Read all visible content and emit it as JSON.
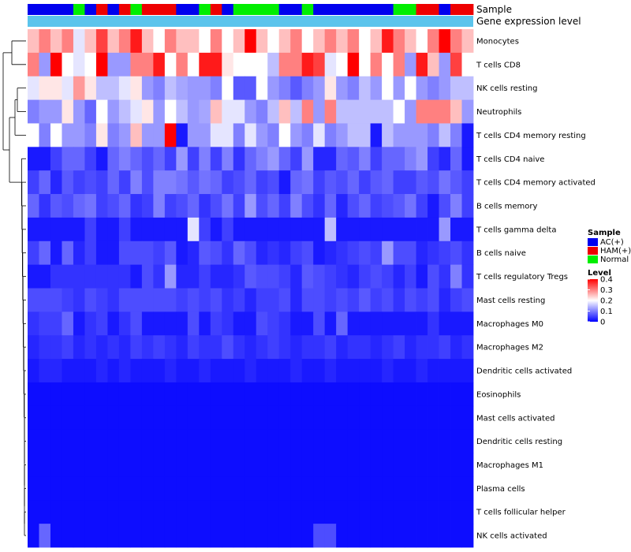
{
  "chart_data": {
    "type": "heatmap",
    "annotation_labels": {
      "sample": "Sample",
      "expression": "Gene expression level"
    },
    "rows": [
      "Monocytes",
      "T cells CD8",
      "NK cells resting",
      "Neutrophils",
      "T cells CD4 memory resting",
      "T cells CD4 naive",
      "T cells CD4 memory activated",
      "B cells memory",
      "T cells gamma delta",
      "B cells naive",
      "T cells regulatory  Tregs",
      "Mast cells resting",
      "Macrophages M0",
      "Macrophages M2",
      "Dendritic cells activated",
      "Eosinophils",
      "Mast cells activated",
      "Dendritic cells resting",
      "Macrophages M1",
      "Plasma cells",
      "T cells follicular helper",
      "NK cells activated"
    ],
    "sample_groups": [
      "AC",
      "AC",
      "AC",
      "AC",
      "Normal",
      "AC",
      "HAM",
      "AC",
      "HAM",
      "Normal",
      "HAM",
      "HAM",
      "HAM",
      "AC",
      "AC",
      "Normal",
      "HAM",
      "AC",
      "Normal",
      "Normal",
      "Normal",
      "Normal",
      "AC",
      "AC",
      "Normal",
      "AC",
      "AC",
      "AC",
      "AC",
      "AC",
      "AC",
      "AC",
      "Normal",
      "Normal",
      "HAM",
      "HAM",
      "AC",
      "HAM",
      "HAM"
    ],
    "values": [
      [
        0.25,
        0.3,
        0.25,
        0.3,
        0.18,
        0.25,
        0.35,
        0.25,
        0.3,
        0.38,
        0.25,
        0.2,
        0.3,
        0.25,
        0.25,
        0.2,
        0.3,
        0.2,
        0.25,
        0.4,
        0.25,
        0.2,
        0.25,
        0.3,
        0.2,
        0.25,
        0.3,
        0.25,
        0.3,
        0.2,
        0.25,
        0.38,
        0.3,
        0.25,
        0.2,
        0.3,
        0.4,
        0.3,
        0.25
      ],
      [
        0.3,
        0.12,
        0.4,
        0.2,
        0.18,
        0.2,
        0.4,
        0.12,
        0.12,
        0.3,
        0.3,
        0.38,
        0.2,
        0.3,
        0.2,
        0.38,
        0.38,
        0.22,
        0.2,
        0.2,
        0.2,
        0.15,
        0.3,
        0.3,
        0.38,
        0.35,
        0.18,
        0.2,
        0.4,
        0.2,
        0.3,
        0.2,
        0.3,
        0.12,
        0.38,
        0.25,
        0.12,
        0.35,
        0.2
      ],
      [
        0.18,
        0.22,
        0.22,
        0.18,
        0.28,
        0.22,
        0.15,
        0.15,
        0.18,
        0.22,
        0.12,
        0.1,
        0.15,
        0.13,
        0.12,
        0.12,
        0.1,
        0.2,
        0.07,
        0.07,
        0.2,
        0.12,
        0.1,
        0.07,
        0.1,
        0.12,
        0.22,
        0.12,
        0.1,
        0.15,
        0.12,
        0.2,
        0.12,
        0.2,
        0.12,
        0.1,
        0.12,
        0.15,
        0.15
      ],
      [
        0.1,
        0.12,
        0.12,
        0.22,
        0.12,
        0.08,
        0.2,
        0.12,
        0.15,
        0.18,
        0.22,
        0.12,
        0.2,
        0.15,
        0.12,
        0.13,
        0.25,
        0.18,
        0.18,
        0.12,
        0.1,
        0.15,
        0.25,
        0.15,
        0.3,
        0.12,
        0.3,
        0.15,
        0.15,
        0.15,
        0.15,
        0.15,
        0.2,
        0.12,
        0.3,
        0.3,
        0.3,
        0.25,
        0.12
      ],
      [
        0.2,
        0.1,
        0.2,
        0.12,
        0.12,
        0.1,
        0.22,
        0.1,
        0.12,
        0.25,
        0.12,
        0.12,
        0.4,
        0.02,
        0.12,
        0.12,
        0.18,
        0.18,
        0.1,
        0.18,
        0.12,
        0.1,
        0.2,
        0.12,
        0.1,
        0.18,
        0.1,
        0.12,
        0.15,
        0.15,
        0.02,
        0.15,
        0.12,
        0.12,
        0.12,
        0.1,
        0.15,
        0.1,
        0.02
      ],
      [
        0.02,
        0.02,
        0.05,
        0.08,
        0.08,
        0.05,
        0.02,
        0.08,
        0.1,
        0.08,
        0.06,
        0.08,
        0.05,
        0.12,
        0.05,
        0.1,
        0.05,
        0.1,
        0.04,
        0.08,
        0.1,
        0.12,
        0.08,
        0.05,
        0.12,
        0.03,
        0.03,
        0.08,
        0.07,
        0.1,
        0.05,
        0.08,
        0.08,
        0.1,
        0.12,
        0.05,
        0.03,
        0.08,
        0.02
      ],
      [
        0.05,
        0.08,
        0.03,
        0.07,
        0.05,
        0.06,
        0.05,
        0.08,
        0.05,
        0.1,
        0.06,
        0.1,
        0.1,
        0.09,
        0.07,
        0.09,
        0.08,
        0.05,
        0.06,
        0.08,
        0.05,
        0.06,
        0.02,
        0.08,
        0.09,
        0.05,
        0.07,
        0.06,
        0.08,
        0.05,
        0.07,
        0.08,
        0.05,
        0.05,
        0.07,
        0.06,
        0.09,
        0.07,
        0.05
      ],
      [
        0.08,
        0.04,
        0.07,
        0.06,
        0.08,
        0.09,
        0.05,
        0.06,
        0.08,
        0.04,
        0.05,
        0.1,
        0.05,
        0.06,
        0.08,
        0.04,
        0.06,
        0.09,
        0.05,
        0.12,
        0.06,
        0.08,
        0.05,
        0.1,
        0.06,
        0.04,
        0.08,
        0.03,
        0.06,
        0.08,
        0.05,
        0.06,
        0.07,
        0.09,
        0.05,
        0.02,
        0.06,
        0.1,
        0.05
      ],
      [
        0.02,
        0.02,
        0.02,
        0.02,
        0.02,
        0.05,
        0.02,
        0.02,
        0.05,
        0.02,
        0.02,
        0.02,
        0.02,
        0.02,
        0.18,
        0.05,
        0.02,
        0.05,
        0.02,
        0.02,
        0.02,
        0.02,
        0.02,
        0.02,
        0.02,
        0.02,
        0.15,
        0.02,
        0.02,
        0.02,
        0.02,
        0.02,
        0.02,
        0.02,
        0.02,
        0.02,
        0.12,
        0.02,
        0.02
      ],
      [
        0.05,
        0.08,
        0.02,
        0.08,
        0.03,
        0.05,
        0.02,
        0.02,
        0.06,
        0.06,
        0.06,
        0.05,
        0.07,
        0.02,
        0.03,
        0.07,
        0.06,
        0.04,
        0.08,
        0.06,
        0.03,
        0.04,
        0.03,
        0.05,
        0.06,
        0.02,
        0.03,
        0.04,
        0.05,
        0.06,
        0.05,
        0.12,
        0.06,
        0.06,
        0.03,
        0.04,
        0.05,
        0.06,
        0.04
      ],
      [
        0.02,
        0.02,
        0.04,
        0.04,
        0.04,
        0.04,
        0.04,
        0.04,
        0.04,
        0.02,
        0.06,
        0.04,
        0.12,
        0.03,
        0.03,
        0.05,
        0.03,
        0.03,
        0.04,
        0.07,
        0.06,
        0.06,
        0.05,
        0.03,
        0.07,
        0.06,
        0.05,
        0.04,
        0.03,
        0.05,
        0.06,
        0.05,
        0.03,
        0.05,
        0.02,
        0.06,
        0.04,
        0.1,
        0.04
      ],
      [
        0.06,
        0.06,
        0.06,
        0.05,
        0.04,
        0.06,
        0.05,
        0.04,
        0.06,
        0.06,
        0.06,
        0.06,
        0.06,
        0.05,
        0.06,
        0.05,
        0.06,
        0.04,
        0.05,
        0.03,
        0.05,
        0.05,
        0.06,
        0.03,
        0.06,
        0.06,
        0.05,
        0.06,
        0.05,
        0.07,
        0.05,
        0.06,
        0.04,
        0.06,
        0.05,
        0.06,
        0.03,
        0.05,
        0.06
      ],
      [
        0.04,
        0.05,
        0.05,
        0.08,
        0.02,
        0.04,
        0.05,
        0.02,
        0.04,
        0.06,
        0.02,
        0.02,
        0.02,
        0.02,
        0.06,
        0.02,
        0.05,
        0.04,
        0.02,
        0.02,
        0.06,
        0.05,
        0.04,
        0.02,
        0.02,
        0.06,
        0.02,
        0.08,
        0.02,
        0.02,
        0.02,
        0.02,
        0.02,
        0.02,
        0.02,
        0.04,
        0.02,
        0.02,
        0.02
      ],
      [
        0.03,
        0.04,
        0.04,
        0.05,
        0.03,
        0.04,
        0.03,
        0.04,
        0.03,
        0.05,
        0.04,
        0.05,
        0.04,
        0.03,
        0.05,
        0.04,
        0.04,
        0.06,
        0.04,
        0.03,
        0.04,
        0.05,
        0.04,
        0.03,
        0.04,
        0.04,
        0.05,
        0.03,
        0.04,
        0.04,
        0.03,
        0.04,
        0.05,
        0.03,
        0.04,
        0.04,
        0.05,
        0.03,
        0.04
      ],
      [
        0.02,
        0.03,
        0.03,
        0.02,
        0.02,
        0.02,
        0.03,
        0.02,
        0.03,
        0.02,
        0.02,
        0.02,
        0.03,
        0.02,
        0.02,
        0.03,
        0.02,
        0.02,
        0.02,
        0.03,
        0.02,
        0.02,
        0.02,
        0.03,
        0.02,
        0.02,
        0.03,
        0.02,
        0.02,
        0.02,
        0.02,
        0.03,
        0.02,
        0.02,
        0.03,
        0.02,
        0.02,
        0.02,
        0.02
      ],
      [
        0.01,
        0.01,
        0.01,
        0.01,
        0.01,
        0.01,
        0.01,
        0.01,
        0.01,
        0.01,
        0.01,
        0.01,
        0.01,
        0.01,
        0.01,
        0.01,
        0.01,
        0.01,
        0.01,
        0.01,
        0.01,
        0.01,
        0.01,
        0.01,
        0.01,
        0.01,
        0.01,
        0.01,
        0.01,
        0.01,
        0.01,
        0.01,
        0.01,
        0.01,
        0.01,
        0.01,
        0.01,
        0.01,
        0.01
      ],
      [
        0.01,
        0.01,
        0.01,
        0.01,
        0.01,
        0.01,
        0.01,
        0.01,
        0.01,
        0.01,
        0.01,
        0.01,
        0.01,
        0.01,
        0.01,
        0.01,
        0.01,
        0.01,
        0.01,
        0.01,
        0.01,
        0.01,
        0.01,
        0.01,
        0.01,
        0.01,
        0.01,
        0.01,
        0.01,
        0.01,
        0.01,
        0.01,
        0.01,
        0.01,
        0.01,
        0.01,
        0.01,
        0.01,
        0.01
      ],
      [
        0.01,
        0.01,
        0.01,
        0.01,
        0.01,
        0.01,
        0.01,
        0.01,
        0.01,
        0.01,
        0.01,
        0.01,
        0.01,
        0.01,
        0.01,
        0.01,
        0.01,
        0.01,
        0.01,
        0.01,
        0.01,
        0.01,
        0.01,
        0.01,
        0.01,
        0.01,
        0.01,
        0.01,
        0.01,
        0.01,
        0.01,
        0.01,
        0.01,
        0.01,
        0.01,
        0.01,
        0.01,
        0.01,
        0.01
      ],
      [
        0.01,
        0.01,
        0.01,
        0.01,
        0.01,
        0.01,
        0.01,
        0.01,
        0.01,
        0.01,
        0.01,
        0.01,
        0.01,
        0.01,
        0.01,
        0.01,
        0.01,
        0.01,
        0.01,
        0.01,
        0.01,
        0.01,
        0.01,
        0.01,
        0.01,
        0.01,
        0.01,
        0.01,
        0.01,
        0.01,
        0.01,
        0.01,
        0.01,
        0.01,
        0.01,
        0.01,
        0.01,
        0.01,
        0.01
      ],
      [
        0.01,
        0.01,
        0.01,
        0.01,
        0.01,
        0.01,
        0.01,
        0.01,
        0.01,
        0.01,
        0.01,
        0.01,
        0.01,
        0.01,
        0.01,
        0.01,
        0.01,
        0.01,
        0.01,
        0.01,
        0.01,
        0.01,
        0.01,
        0.01,
        0.01,
        0.01,
        0.01,
        0.01,
        0.01,
        0.01,
        0.01,
        0.01,
        0.01,
        0.01,
        0.01,
        0.01,
        0.01,
        0.01,
        0.01
      ],
      [
        0.01,
        0.01,
        0.01,
        0.01,
        0.01,
        0.01,
        0.01,
        0.01,
        0.01,
        0.01,
        0.01,
        0.01,
        0.01,
        0.01,
        0.01,
        0.01,
        0.01,
        0.01,
        0.01,
        0.01,
        0.01,
        0.01,
        0.01,
        0.01,
        0.01,
        0.01,
        0.01,
        0.01,
        0.01,
        0.01,
        0.01,
        0.01,
        0.01,
        0.01,
        0.01,
        0.01,
        0.01,
        0.01,
        0.01
      ],
      [
        0.01,
        0.08,
        0.01,
        0.01,
        0.01,
        0.01,
        0.01,
        0.01,
        0.01,
        0.01,
        0.01,
        0.01,
        0.01,
        0.01,
        0.01,
        0.01,
        0.01,
        0.01,
        0.01,
        0.01,
        0.01,
        0.01,
        0.01,
        0.01,
        0.01,
        0.06,
        0.06,
        0.01,
        0.01,
        0.01,
        0.01,
        0.01,
        0.01,
        0.01,
        0.01,
        0.01,
        0.01,
        0.01,
        0.01
      ]
    ],
    "legend": {
      "sample_title": "Sample",
      "sample_items": [
        {
          "key": "AC",
          "label": "AC(+)",
          "color": "#0000ee"
        },
        {
          "key": "HAM",
          "label": "HAM(+)",
          "color": "#ee0000"
        },
        {
          "key": "Normal",
          "label": "Normal",
          "color": "#00ee00"
        }
      ],
      "level_title": "Level",
      "level_ticks": [
        "0.4",
        "0.3",
        "0.2",
        "0.1",
        "0"
      ],
      "level_range": [
        0,
        0.4
      ]
    },
    "color_scale": {
      "low": "#0000ff",
      "mid": "#ffffff",
      "high": "#ff0000",
      "mid_value": 0.2
    },
    "expression_bar_color": "#5bc4ec"
  }
}
